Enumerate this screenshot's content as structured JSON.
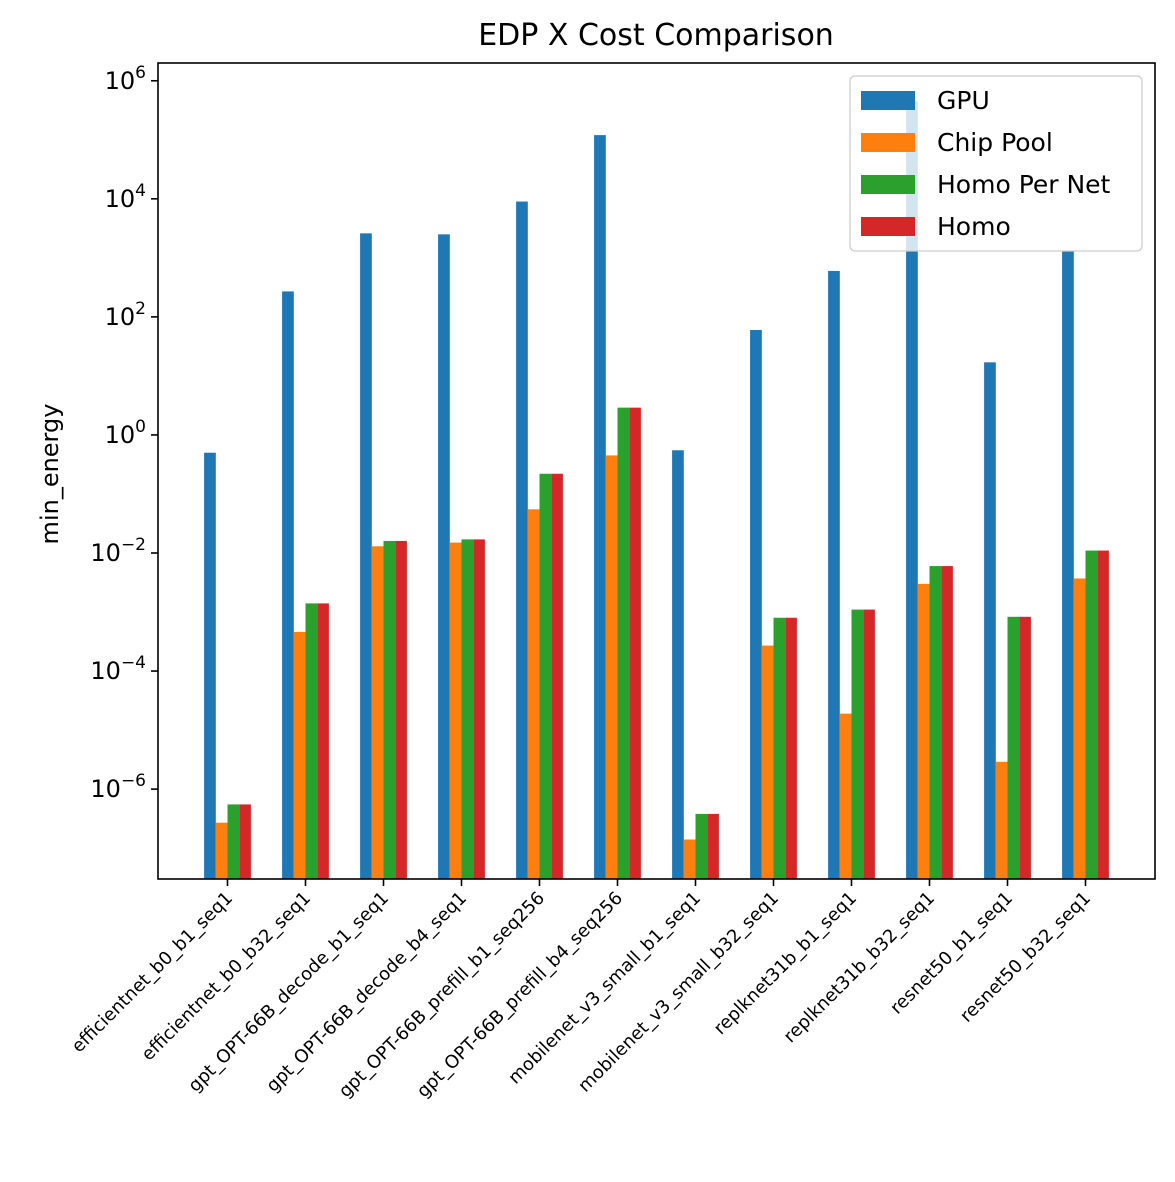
{
  "chart_data": {
    "type": "bar",
    "title": "EDP X Cost Comparison",
    "xlabel": "",
    "ylabel": "min_energy",
    "yscale": "log",
    "ylim": [
      3e-08,
      2000000
    ],
    "yticks": [
      {
        "base": "10",
        "exp": "6",
        "value": 1000000
      },
      {
        "base": "10",
        "exp": "4",
        "value": 10000
      },
      {
        "base": "10",
        "exp": "2",
        "value": 100
      },
      {
        "base": "10",
        "exp": "0",
        "value": 1
      },
      {
        "base": "10",
        "exp": "−2",
        "value": 0.01
      },
      {
        "base": "10",
        "exp": "−4",
        "value": 0.0001
      },
      {
        "base": "10",
        "exp": "−6",
        "value": 1e-06
      }
    ],
    "grid": false,
    "legend_position": "top-right",
    "categories": [
      "efficientnet_b0_b1_seq1",
      "efficientnet_b0_b32_seq1",
      "gpt_OPT-66B_decode_b1_seq1",
      "gpt_OPT-66B_decode_b4_seq1",
      "gpt_OPT-66B_prefill_b1_seq256",
      "gpt_OPT-66B_prefill_b4_seq256",
      "mobilenet_v3_small_b1_seq1",
      "mobilenet_v3_small_b32_seq1",
      "replknet31b_b1_seq1",
      "replknet31b_b32_seq1",
      "resnet50_b1_seq1",
      "resnet50_b32_seq1"
    ],
    "series": [
      {
        "name": "GPU",
        "color": "#1f77b4",
        "values": [
          0.5,
          270,
          2600,
          2500,
          9000,
          120000,
          0.55,
          60,
          600,
          450000,
          17,
          1300
        ]
      },
      {
        "name": "Chip Pool",
        "color": "#ff7f0e",
        "values": [
          2.7e-07,
          0.00046,
          0.013,
          0.015,
          0.055,
          0.45,
          1.4e-07,
          0.00027,
          1.9e-05,
          0.003,
          2.9e-06,
          0.0037
        ]
      },
      {
        "name": "Homo Per Net",
        "color": "#2ca02c",
        "values": [
          5.5e-07,
          0.0014,
          0.016,
          0.017,
          0.22,
          2.9,
          3.8e-07,
          0.0008,
          0.0011,
          0.006,
          0.00083,
          0.011
        ]
      },
      {
        "name": "Homo",
        "color": "#d62728",
        "values": [
          5.5e-07,
          0.0014,
          0.016,
          0.017,
          0.22,
          2.9,
          3.8e-07,
          0.0008,
          0.0011,
          0.006,
          0.00083,
          0.011
        ]
      }
    ]
  }
}
